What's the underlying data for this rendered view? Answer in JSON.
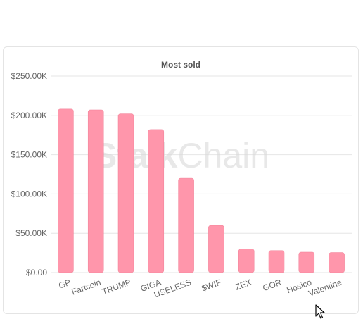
{
  "watermark": {
    "part1": "Stalk",
    "part2": "Chain"
  },
  "chart_data": {
    "type": "bar",
    "title": "Most sold",
    "categories": [
      "GP",
      "Fartcoin",
      "TRUMP",
      "GIGA",
      "USELESS",
      "$WIF",
      "ZEX",
      "GOR",
      "Hosico",
      "Valentine"
    ],
    "values": [
      208000,
      207000,
      202000,
      182000,
      120000,
      60000,
      30000,
      28000,
      26000,
      25500
    ],
    "ylim": [
      0,
      250000
    ],
    "yticks": [
      0,
      50000,
      100000,
      150000,
      200000,
      250000
    ],
    "ytick_labels": [
      "$0.00",
      "$50.00K",
      "$100.00K",
      "$150.00K",
      "$200.00K",
      "$250.00K"
    ],
    "grid": true,
    "bar_color": "#ff96ab",
    "bar_border": "#f07e95"
  },
  "colors": {
    "grid": "#e6e6e6",
    "axis_text": "#666666",
    "title": "#555555"
  }
}
